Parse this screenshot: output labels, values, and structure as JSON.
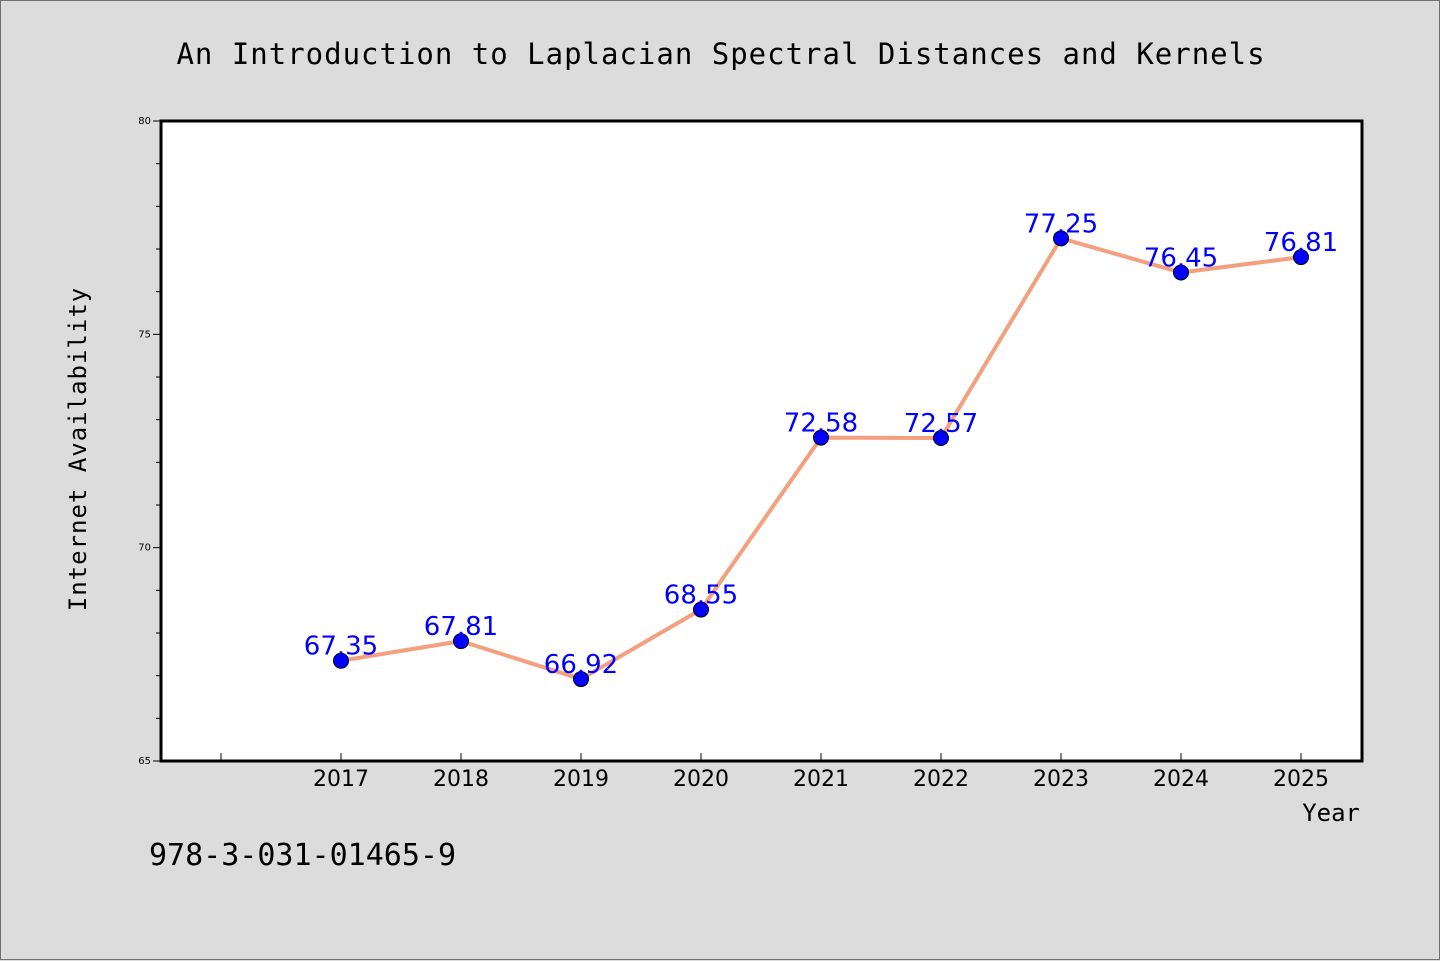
{
  "chart_data": {
    "type": "line",
    "title": "An Introduction to Laplacian Spectral Distances and Kernels",
    "xlabel": "Year",
    "ylabel": "Internet Availability",
    "categories": [
      "2017",
      "2018",
      "2019",
      "2020",
      "2021",
      "2022",
      "2023",
      "2024",
      "2025"
    ],
    "series": [
      {
        "values": [
          67.35,
          67.81,
          66.92,
          68.55,
          72.58,
          72.57,
          77.25,
          76.45,
          76.81
        ]
      }
    ],
    "data_labels": [
      "67.35",
      "67.81",
      "66.92",
      "68.55",
      "72.58",
      "72.57",
      "77.25",
      "76.45",
      "76.81"
    ],
    "ylim": [
      65,
      80
    ],
    "yticks": [
      "65",
      "70",
      "75",
      "80"
    ],
    "grid": false,
    "legend": "none",
    "line_color": "#f4a07e",
    "marker_color": "#0000ff",
    "label_color": "#0000ff",
    "annotation": "978-3-031-01465-9"
  }
}
